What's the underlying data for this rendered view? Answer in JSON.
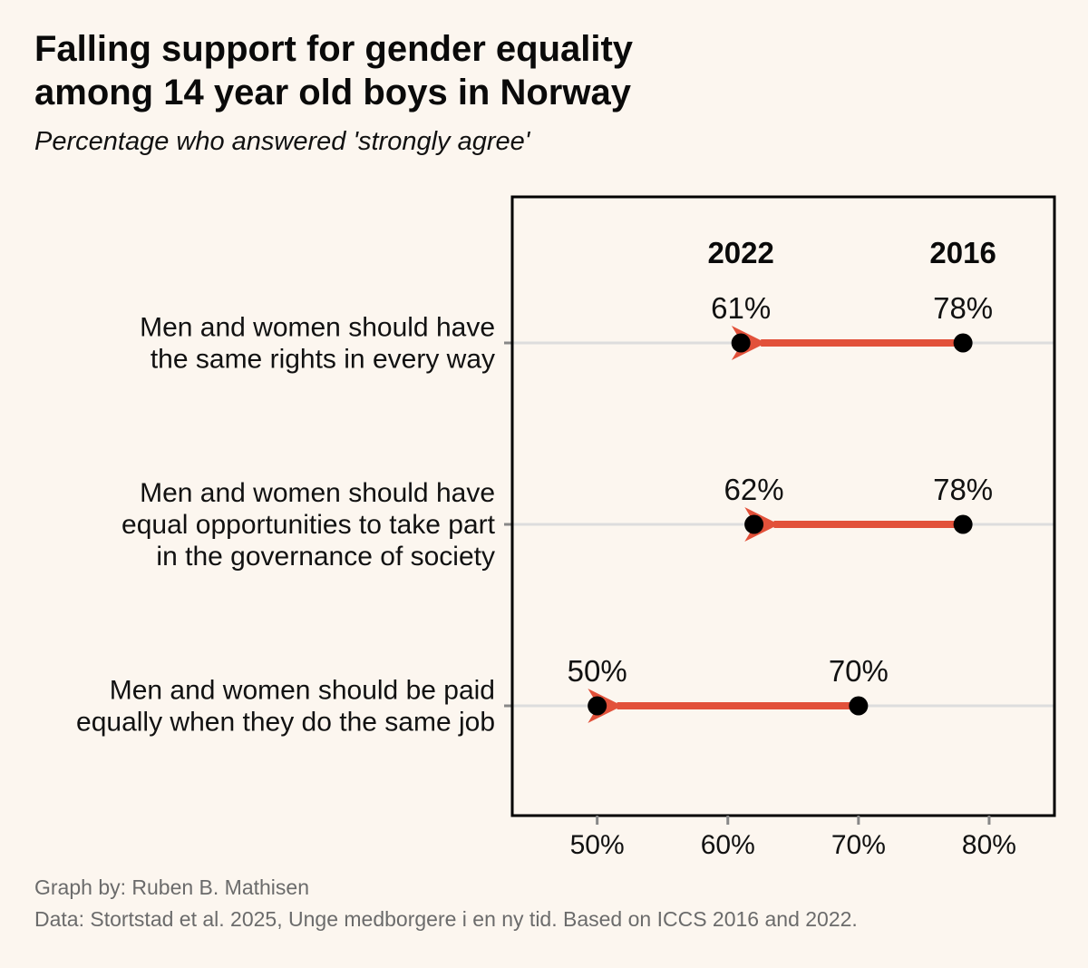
{
  "title": {
    "line1": "Falling support for gender equality",
    "line2": "among 14 year old boys in Norway"
  },
  "subtitle": "Percentage who answered 'strongly agree'",
  "colors": {
    "arrow": "#e2513a",
    "point": "#000000",
    "gridline": "#dddddd",
    "background": "#fcf6ef",
    "caption": "#6b6b6b"
  },
  "chart_data": {
    "type": "dumbbell",
    "series": [
      {
        "name": "2016",
        "values": [
          78,
          78,
          70
        ]
      },
      {
        "name": "2022",
        "values": [
          61,
          62,
          50
        ]
      }
    ],
    "series_labels": {
      "from": "2016",
      "to": "2022"
    },
    "categories": [
      [
        "Men and women should have",
        "the same rights in every way"
      ],
      [
        "Men and women should have",
        "equal opportunities to take part",
        "in the governance of society"
      ],
      [
        "Men and women should be paid",
        "equally when they do the same job"
      ]
    ],
    "value_labels_2016": [
      "78%",
      "78%",
      "70%"
    ],
    "value_labels_2022": [
      "61%",
      "62%",
      "50%"
    ],
    "x_ticks": [
      50,
      60,
      70,
      80
    ],
    "x_tick_labels": [
      "50%",
      "60%",
      "70%",
      "80%"
    ],
    "xlim": [
      43.5,
      85
    ],
    "arrow_direction": "2016 to 2022"
  },
  "captions": {
    "line1": "Graph by: Ruben B. Mathisen",
    "line2": "Data: Stortstad et al. 2025, Unge medborgere i en ny tid. Based on ICCS 2016 and 2022."
  }
}
